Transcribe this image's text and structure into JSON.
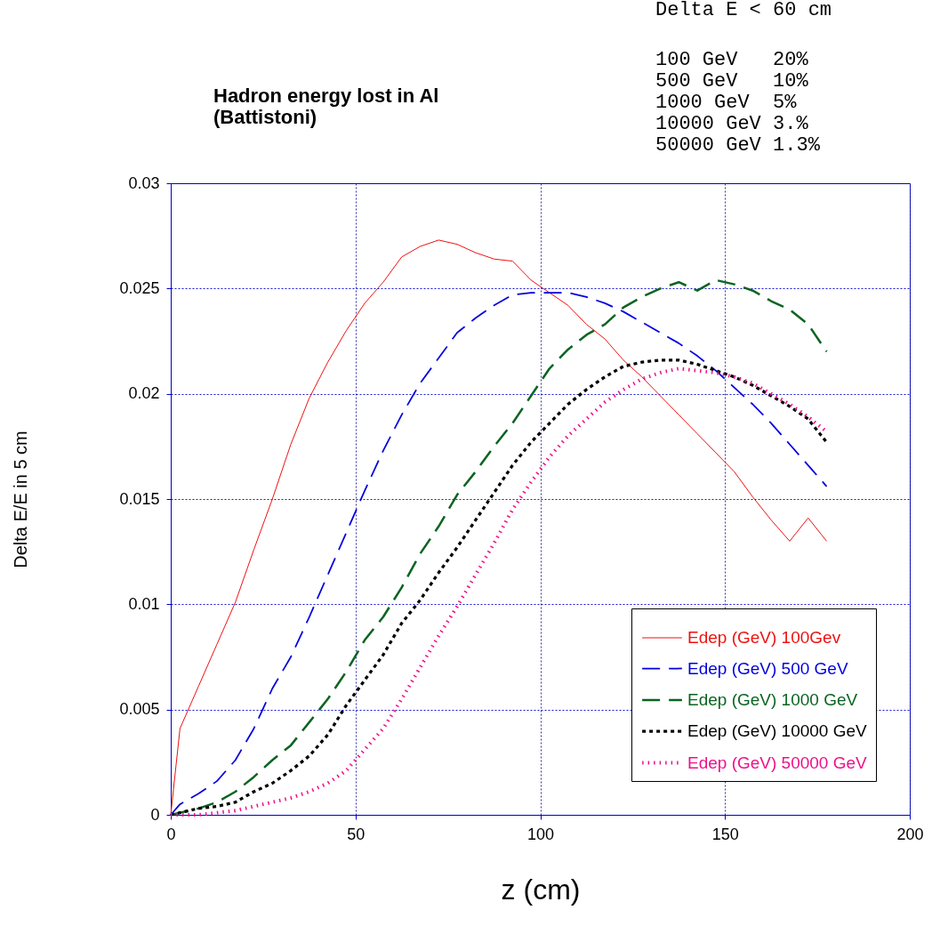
{
  "chart_data": {
    "type": "line",
    "title": "Hadron energy lost in Al",
    "subtitle": "(Battistoni)",
    "xlabel": "z (cm)",
    "ylabel": "Delta E/E in 5 cm",
    "annotations": [
      "Delta E < 60 cm",
      "100 GeV   20%",
      "500 GeV   10%",
      "1000 GeV  5%",
      "10000 GeV 3.%",
      "50000 GeV 1.3%"
    ],
    "x": [
      0,
      2.5,
      7.5,
      12.5,
      17.5,
      22.5,
      27.5,
      32.5,
      37.5,
      42.5,
      47.5,
      52.5,
      57.5,
      62.5,
      67.5,
      72.5,
      77.5,
      82.5,
      87.5,
      92.5,
      97.5,
      102.5,
      107.5,
      112.5,
      117.5,
      122.5,
      127.5,
      132.5,
      137.5,
      142.5,
      147.5,
      152.5,
      157.5,
      162.5,
      167.5,
      172.5,
      177.5
    ],
    "series": [
      {
        "name": "Edep (GeV)  100Gev",
        "color": "#ee1111",
        "line_style": "solid",
        "values": [
          0,
          0.0041,
          0.0061,
          0.0081,
          0.0101,
          0.0126,
          0.015,
          0.0176,
          0.0198,
          0.0215,
          0.023,
          0.0243,
          0.0253,
          0.0265,
          0.027,
          0.0273,
          0.0271,
          0.0267,
          0.0264,
          0.0263,
          0.0254,
          0.0248,
          0.0242,
          0.0233,
          0.0226,
          0.0216,
          0.0208,
          0.0199,
          0.019,
          0.0181,
          0.0172,
          0.0163,
          0.0151,
          0.014,
          0.013,
          0.0141,
          0.013
        ]
      },
      {
        "name": "Edep (GeV) 500 GeV",
        "color": "#0000dd",
        "line_style": "dashed",
        "values": [
          0,
          0.0005,
          0.001,
          0.0016,
          0.0026,
          0.0041,
          0.006,
          0.0075,
          0.0094,
          0.0114,
          0.0134,
          0.0154,
          0.0173,
          0.019,
          0.0205,
          0.0217,
          0.0229,
          0.0236,
          0.0242,
          0.0247,
          0.0248,
          0.0248,
          0.0248,
          0.0246,
          0.0243,
          0.0239,
          0.0234,
          0.0229,
          0.0224,
          0.0218,
          0.0211,
          0.0203,
          0.0195,
          0.0186,
          0.0176,
          0.0166,
          0.0156
        ]
      },
      {
        "name": "Edep (GeV) 1000 GeV",
        "color": "#0a6420",
        "line_style": "dashed",
        "values": [
          0,
          0.0001,
          0.0003,
          0.0006,
          0.0011,
          0.0018,
          0.0026,
          0.0033,
          0.0044,
          0.0055,
          0.0068,
          0.0083,
          0.0094,
          0.0108,
          0.0124,
          0.0137,
          0.0152,
          0.0163,
          0.0175,
          0.0186,
          0.0199,
          0.0212,
          0.0221,
          0.0228,
          0.0233,
          0.0241,
          0.0246,
          0.025,
          0.0253,
          0.0249,
          0.0254,
          0.0252,
          0.0249,
          0.0244,
          0.024,
          0.0233,
          0.022
        ]
      },
      {
        "name": "Edep (GeV) 10000 GeV",
        "color": "#000000",
        "line_style": "dashed",
        "values": [
          0,
          0.0001,
          0.0003,
          0.0004,
          0.0006,
          0.0011,
          0.0015,
          0.0021,
          0.0028,
          0.0038,
          0.0052,
          0.0064,
          0.0076,
          0.0091,
          0.0102,
          0.0115,
          0.0127,
          0.014,
          0.0153,
          0.0166,
          0.0177,
          0.0186,
          0.0195,
          0.0202,
          0.0208,
          0.0213,
          0.0215,
          0.0216,
          0.0216,
          0.0214,
          0.0211,
          0.0208,
          0.0204,
          0.0199,
          0.0194,
          0.0188,
          0.0177
        ]
      },
      {
        "name": "Edep (GeV) 50000 GeV",
        "color": "#ee1188",
        "line_style": "dotted",
        "values": [
          0,
          0,
          0,
          0.0001,
          0.0002,
          0.0004,
          0.0006,
          0.0008,
          0.0011,
          0.0015,
          0.0021,
          0.0031,
          0.0041,
          0.0055,
          0.007,
          0.0085,
          0.0099,
          0.0114,
          0.0129,
          0.0145,
          0.0158,
          0.017,
          0.018,
          0.0188,
          0.0196,
          0.0202,
          0.0207,
          0.021,
          0.0212,
          0.0211,
          0.021,
          0.0208,
          0.0205,
          0.02,
          0.0195,
          0.0189,
          0.0182
        ]
      }
    ],
    "xlim": [
      0,
      200
    ],
    "xticks": [
      0,
      50,
      100,
      150,
      200
    ],
    "ylim": [
      0,
      0.03
    ],
    "yticks": [
      0,
      0.005,
      0.01,
      0.015,
      0.02,
      0.025,
      0.03
    ],
    "grid": true,
    "legend": "bottom right"
  }
}
